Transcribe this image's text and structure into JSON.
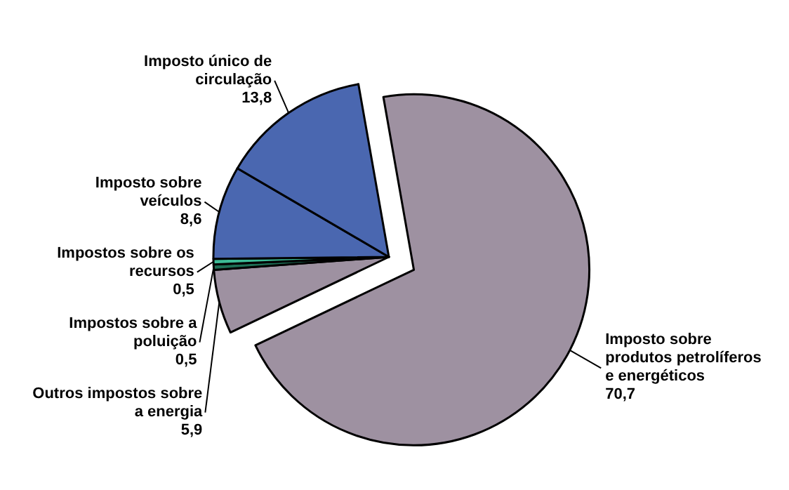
{
  "chart_data": {
    "type": "pie",
    "categories": [
      "Imposto sobre produtos petrolíferos e energéticos",
      "Outros impostos sobre a energia",
      "Impostos sobre a poluição",
      "Impostos sobre os recursos",
      "Imposto sobre veículos",
      "Imposto único de circulação"
    ],
    "values": [
      70.7,
      5.9,
      0.5,
      0.5,
      8.6,
      13.8
    ],
    "value_labels": [
      "70,7",
      "5,9",
      "0,5",
      "0,5",
      "8,6",
      "13,8"
    ],
    "colors": [
      "#9e91a1",
      "#9e91a1",
      "#1e6e55",
      "#3dbb96",
      "#4a67b0",
      "#4a67b0"
    ]
  }
}
